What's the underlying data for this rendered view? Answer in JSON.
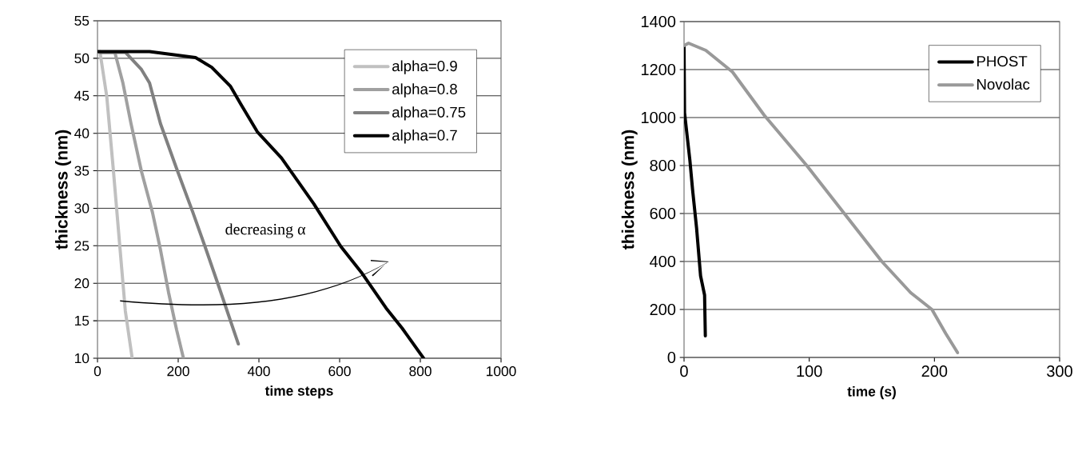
{
  "chart_data": [
    {
      "type": "line",
      "xlabel": "time steps",
      "ylabel": "thickness (nm)",
      "xlim": [
        0,
        1000
      ],
      "ylim": [
        10,
        55
      ],
      "xticks": [
        0,
        200,
        400,
        600,
        800,
        1000
      ],
      "yticks": [
        10,
        15,
        20,
        25,
        30,
        35,
        40,
        45,
        50,
        55
      ],
      "grid": "y",
      "legend": "top right",
      "annotations": [
        "decreasing α"
      ],
      "series": [
        {
          "name": "alpha=0.9",
          "color": "#c0c0c0",
          "x": [
            6,
            23,
            39,
            56,
            69,
            86
          ],
          "values": [
            50.9,
            44.9,
            35.3,
            24.5,
            16.3,
            10
          ]
        },
        {
          "name": "alpha=0.8",
          "color": "#a0a0a0",
          "x": [
            6,
            43,
            63,
            83,
            109,
            136,
            156,
            176,
            196,
            213
          ],
          "values": [
            50.8,
            50.8,
            46.7,
            41.3,
            34.9,
            29.5,
            24.5,
            18.8,
            13.8,
            10
          ]
        },
        {
          "name": "alpha=0.75",
          "color": "#808080",
          "x": [
            6,
            69,
            109,
            129,
            156,
            196,
            236,
            269,
            303,
            349
          ],
          "values": [
            50.8,
            50.8,
            48.5,
            46.7,
            41.3,
            35.3,
            29.5,
            24.5,
            19.2,
            11.9
          ]
        },
        {
          "name": "alpha=0.7",
          "color": "#000000",
          "x": [
            0,
            129,
            243,
            283,
            329,
            356,
            396,
            456,
            536,
            603,
            656,
            715,
            755,
            808
          ],
          "values": [
            50.9,
            50.9,
            50.1,
            48.8,
            46.3,
            43.8,
            40.2,
            36.7,
            30.6,
            24.9,
            21.3,
            16.7,
            14,
            10
          ]
        }
      ]
    },
    {
      "type": "line",
      "xlabel": "time (s)",
      "ylabel": "thickness (nm)",
      "xlim": [
        0,
        300
      ],
      "ylim": [
        0,
        1400
      ],
      "xticks": [
        0,
        100,
        200,
        300
      ],
      "yticks": [
        0,
        200,
        400,
        600,
        800,
        1000,
        1200,
        1400
      ],
      "grid": "y",
      "legend": "top right",
      "series": [
        {
          "name": "PHOST",
          "color": "#000000",
          "x": [
            0,
            0.4,
            4.7,
            6.8,
            10,
            13.2,
            16.4,
            17
          ],
          "values": [
            1300,
            1020,
            820,
            700,
            540,
            340,
            260,
            90
          ]
        },
        {
          "name": "Novolac",
          "color": "#999999",
          "x": [
            0,
            3.6,
            17.4,
            38.7,
            64,
            98,
            128,
            158,
            181,
            198,
            209,
            218.5
          ],
          "values": [
            1300,
            1310,
            1280,
            1190,
            1010,
            800,
            600,
            400,
            270,
            200,
            100,
            20
          ]
        }
      ]
    }
  ]
}
